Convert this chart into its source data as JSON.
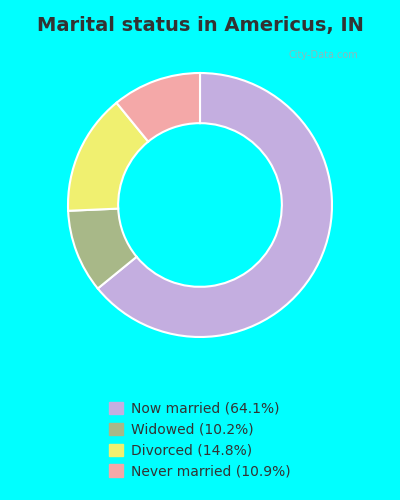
{
  "title": "Marital status in Americus, IN",
  "title_fontsize": 14,
  "bg_top": "#00FFFF",
  "bg_chart_color": "#d8eedf",
  "slices": [
    {
      "label": "Now married (64.1%)",
      "value": 64.1,
      "color": "#c4aee0"
    },
    {
      "label": "Widowed (10.2%)",
      "value": 10.2,
      "color": "#a8b888"
    },
    {
      "label": "Divorced (14.8%)",
      "value": 14.8,
      "color": "#f0f070"
    },
    {
      "label": "Never married (10.9%)",
      "value": 10.9,
      "color": "#f4a8a8"
    }
  ],
  "donut_width": 0.38,
  "figsize": [
    4.0,
    5.0
  ],
  "dpi": 100,
  "watermark": "City-Data.com"
}
